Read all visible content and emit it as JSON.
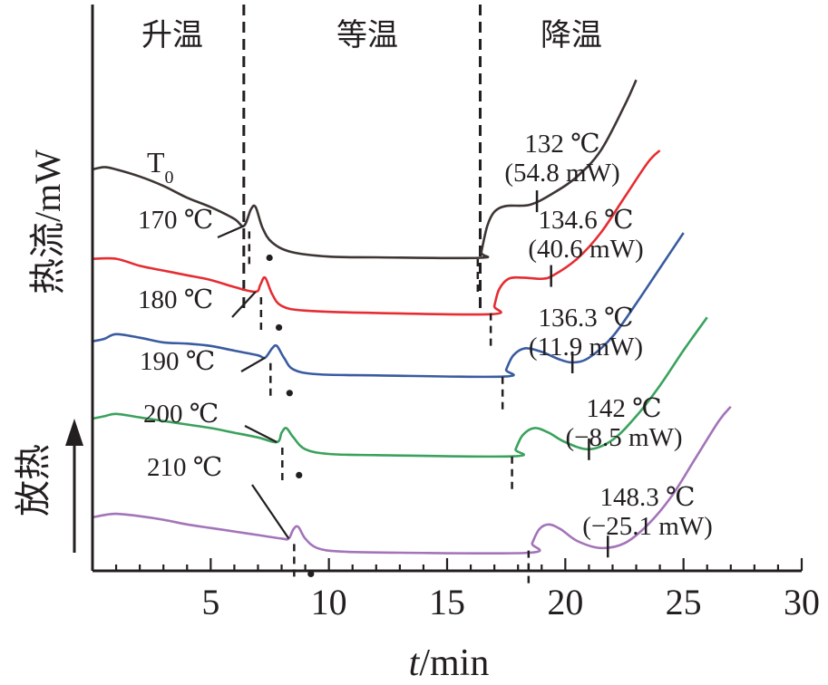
{
  "chart_data": {
    "type": "line",
    "xlabel_italic": "t",
    "xlabel_rest": "/min",
    "ylabel": "热流/mW",
    "exo_label": "放热",
    "xlim": [
      0,
      30
    ],
    "xticks": [
      5,
      10,
      15,
      20,
      25,
      30
    ],
    "phases": [
      "升温",
      "等温",
      "降温"
    ],
    "phase_boundaries_min": [
      6.4,
      16.4
    ],
    "t0_label": "T",
    "t0_sub": "0",
    "colors": [
      "#3d3533",
      "#e52d32",
      "#3a5ba0",
      "#3aa25d",
      "#a374b8"
    ],
    "series": [
      {
        "hold_temp_label": "170 ℃",
        "points": [
          [
            0,
            0.55
          ],
          [
            0.5,
            0.56
          ],
          [
            1,
            0.55
          ],
          [
            2,
            0.52
          ],
          [
            3,
            0.48
          ],
          [
            4,
            0.43
          ],
          [
            5,
            0.39
          ],
          [
            6,
            0.34
          ],
          [
            6.4,
            0.31
          ],
          [
            6.7,
            0.38
          ],
          [
            6.9,
            0.39
          ],
          [
            7.2,
            0.3
          ],
          [
            7.6,
            0.24
          ],
          [
            8.4,
            0.2
          ],
          [
            10,
            0.18
          ],
          [
            12,
            0.177
          ],
          [
            16.4,
            0.175
          ],
          [
            16.45,
            0.2
          ],
          [
            16.7,
            0.31
          ],
          [
            17.0,
            0.37
          ],
          [
            17.5,
            0.395
          ],
          [
            18.5,
            0.4
          ],
          [
            19.5,
            0.45
          ],
          [
            20.5,
            0.52
          ],
          [
            21.5,
            0.63
          ],
          [
            22.5,
            0.82
          ],
          [
            23,
            0.93
          ]
        ],
        "crystallization_onset_min": 6.4,
        "crystallization_peak_min": 6.95,
        "cooling_annotation": {
          "temp": "132 ℃",
          "power": "(54.8 mW)",
          "t": 18.8
        }
      },
      {
        "hold_temp_label": "180 ℃",
        "points": [
          [
            0,
            0.44
          ],
          [
            1,
            0.44
          ],
          [
            2,
            0.41
          ],
          [
            3,
            0.39
          ],
          [
            4,
            0.37
          ],
          [
            5,
            0.35
          ],
          [
            6,
            0.32
          ],
          [
            6.9,
            0.3
          ],
          [
            7.1,
            0.33
          ],
          [
            7.3,
            0.36
          ],
          [
            7.6,
            0.29
          ],
          [
            8,
            0.24
          ],
          [
            9,
            0.22
          ],
          [
            12,
            0.21
          ],
          [
            16.9,
            0.205
          ],
          [
            17.0,
            0.24
          ],
          [
            17.2,
            0.31
          ],
          [
            17.6,
            0.355
          ],
          [
            18.2,
            0.36
          ],
          [
            19,
            0.355
          ],
          [
            19.5,
            0.37
          ],
          [
            20.5,
            0.44
          ],
          [
            21.5,
            0.55
          ],
          [
            22.5,
            0.7
          ],
          [
            23.5,
            0.85
          ],
          [
            24,
            0.9
          ]
        ],
        "crystallization_onset_min": 6.9,
        "crystallization_peak_min": 7.35,
        "cooling_annotation": {
          "temp": "134.6 ℃",
          "power": "(40.6 mW)",
          "t": 19.4
        }
      },
      {
        "hold_temp_label": "190 ℃",
        "points": [
          [
            0,
            0.34
          ],
          [
            0.5,
            0.35
          ],
          [
            1,
            0.37
          ],
          [
            2,
            0.355
          ],
          [
            3,
            0.335
          ],
          [
            4,
            0.33
          ],
          [
            5,
            0.32
          ],
          [
            6,
            0.3
          ],
          [
            7,
            0.28
          ],
          [
            7.3,
            0.27
          ],
          [
            7.6,
            0.31
          ],
          [
            7.8,
            0.32
          ],
          [
            8.1,
            0.27
          ],
          [
            8.5,
            0.22
          ],
          [
            9.5,
            0.2
          ],
          [
            12,
            0.195
          ],
          [
            17.4,
            0.19
          ],
          [
            17.5,
            0.22
          ],
          [
            17.8,
            0.28
          ],
          [
            18.3,
            0.31
          ],
          [
            19,
            0.295
          ],
          [
            19.7,
            0.265
          ],
          [
            20.3,
            0.25
          ],
          [
            21,
            0.27
          ],
          [
            22,
            0.36
          ],
          [
            23,
            0.5
          ],
          [
            24,
            0.65
          ],
          [
            25,
            0.8
          ]
        ],
        "crystallization_onset_min": 7.3,
        "crystallization_peak_min": 7.8,
        "cooling_annotation": {
          "temp": "136.3 ℃",
          "power": "(11.9 mW)",
          "t": 20.3
        }
      },
      {
        "hold_temp_label": "200 ℃",
        "points": [
          [
            0,
            0.3
          ],
          [
            0.5,
            0.31
          ],
          [
            1,
            0.32
          ],
          [
            2,
            0.305
          ],
          [
            3,
            0.29
          ],
          [
            4,
            0.275
          ],
          [
            5,
            0.26
          ],
          [
            6,
            0.24
          ],
          [
            7,
            0.22
          ],
          [
            7.8,
            0.2
          ],
          [
            8.0,
            0.24
          ],
          [
            8.2,
            0.26
          ],
          [
            8.5,
            0.22
          ],
          [
            9,
            0.17
          ],
          [
            10,
            0.15
          ],
          [
            12,
            0.145
          ],
          [
            17.8,
            0.14
          ],
          [
            17.9,
            0.17
          ],
          [
            18.2,
            0.23
          ],
          [
            18.7,
            0.26
          ],
          [
            19.3,
            0.24
          ],
          [
            20,
            0.2
          ],
          [
            21,
            0.17
          ],
          [
            22,
            0.21
          ],
          [
            23,
            0.31
          ],
          [
            24,
            0.44
          ],
          [
            25,
            0.59
          ],
          [
            26,
            0.73
          ]
        ],
        "crystallization_onset_min": 7.8,
        "crystallization_peak_min": 8.2,
        "cooling_annotation": {
          "temp": "142 ℃",
          "power": "(−8.5 mW)",
          "t": 21.0
        }
      },
      {
        "hold_temp_label": "210 ℃",
        "points": [
          [
            0,
            0.15
          ],
          [
            0.5,
            0.16
          ],
          [
            1,
            0.165
          ],
          [
            2,
            0.155
          ],
          [
            3,
            0.14
          ],
          [
            4,
            0.12
          ],
          [
            5,
            0.105
          ],
          [
            6,
            0.09
          ],
          [
            7,
            0.075
          ],
          [
            8,
            0.06
          ],
          [
            8.3,
            0.06
          ],
          [
            8.5,
            0.1
          ],
          [
            8.7,
            0.11
          ],
          [
            9,
            0.06
          ],
          [
            9.5,
            0.02
          ],
          [
            10.5,
            0.005
          ],
          [
            13,
            0.0
          ],
          [
            18.5,
            0.0
          ],
          [
            18.6,
            0.04
          ],
          [
            18.9,
            0.1
          ],
          [
            19.3,
            0.12
          ],
          [
            19.8,
            0.1
          ],
          [
            20.5,
            0.05
          ],
          [
            21.5,
            0.02
          ],
          [
            22.5,
            0.04
          ],
          [
            23.5,
            0.12
          ],
          [
            24.5,
            0.24
          ],
          [
            25.5,
            0.4
          ],
          [
            26.5,
            0.56
          ],
          [
            27,
            0.62
          ]
        ],
        "crystallization_onset_min": 8.3,
        "crystallization_peak_min": 8.7,
        "cooling_annotation": {
          "temp": "148.3 ℃",
          "power": "(−25.1 mW)",
          "t": 21.8
        }
      }
    ]
  }
}
